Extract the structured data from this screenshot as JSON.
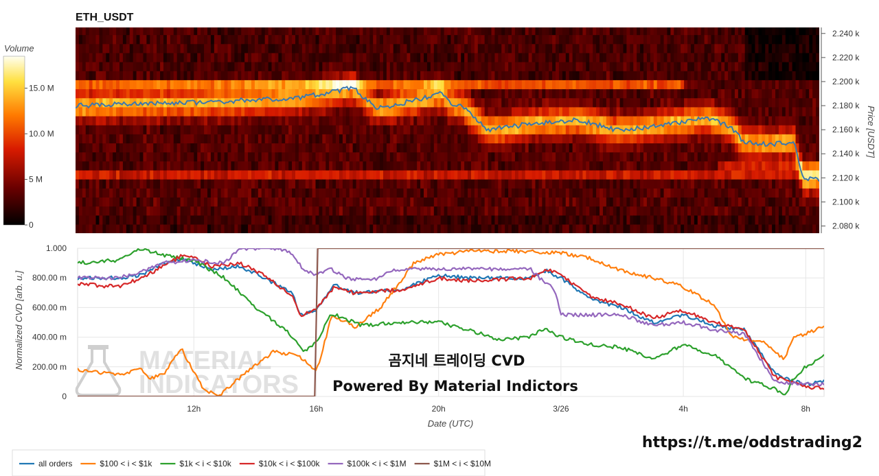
{
  "chart_data": [
    {
      "type": "heatmap",
      "title": "ETH_USDT",
      "ylabel": "Price [USDT]",
      "yticks": [
        "2.080 k",
        "2.100 k",
        "2.120 k",
        "2.140 k",
        "2.160 k",
        "2.180 k",
        "2.200 k",
        "2.220 k",
        "2.240 k"
      ],
      "ylim": [
        2074,
        2245
      ],
      "colorbar": {
        "title": "Volume",
        "ticks": [
          "0",
          "5 M",
          "10.0 M",
          "15.0 M"
        ],
        "range": [
          0,
          18.5
        ],
        "colors": [
          "#000000",
          "#6a0000",
          "#d81b00",
          "#ff7a00",
          "#ffe040",
          "#fffff0"
        ]
      },
      "price_series": {
        "name": "price",
        "color": "#3a78b0",
        "x": [
          0,
          6,
          10,
          12.1,
          13.2,
          15,
          16,
          16.3,
          17,
          18,
          20,
          22,
          23.6,
          25,
          26,
          27.6,
          28.6,
          29.2,
          30.4,
          31.4,
          31.8,
          32.2,
          32.5
        ],
        "y": [
          2180,
          2183,
          2187,
          2195,
          2178,
          2185,
          2190,
          2183,
          2178,
          2160,
          2165,
          2168,
          2160,
          2162,
          2165,
          2170,
          2163,
          2150,
          2148,
          2150,
          2118,
          2120,
          2118
        ]
      }
    },
    {
      "type": "line",
      "xlabel": "Date (UTC)",
      "ylabel": "Normalized CVD [arb. u.]",
      "xlim": [
        8.2,
        32.6
      ],
      "ylim": [
        0,
        1
      ],
      "xticks": [
        {
          "v": 12,
          "label": "12h"
        },
        {
          "v": 16,
          "label": "16h"
        },
        {
          "v": 20,
          "label": "20h"
        },
        {
          "v": 24,
          "label": "3/26"
        },
        {
          "v": 28,
          "label": "4h"
        },
        {
          "v": 32,
          "label": "8h"
        }
      ],
      "yticks": [
        {
          "v": 0,
          "label": "0"
        },
        {
          "v": 0.2,
          "label": "200.00 m"
        },
        {
          "v": 0.4,
          "label": "400.00 m"
        },
        {
          "v": 0.6,
          "label": "600.00 m"
        },
        {
          "v": 0.8,
          "label": "800.00 m"
        },
        {
          "v": 1.0,
          "label": "1.000"
        }
      ],
      "series": [
        {
          "name": "all orders",
          "color": "#1f77b4",
          "x": [
            8.2,
            9.5,
            10.3,
            11,
            11.7,
            12.6,
            13.5,
            14.3,
            15.2,
            15.5,
            16,
            16.1,
            16.6,
            17.2,
            18.8,
            20,
            21,
            22,
            23,
            23.5,
            24,
            25,
            26,
            27,
            28,
            29,
            30,
            31,
            32,
            32.6
          ],
          "y": [
            0.8,
            0.8,
            0.82,
            0.9,
            0.93,
            0.85,
            0.88,
            0.8,
            0.7,
            0.55,
            0.58,
            0.62,
            0.75,
            0.7,
            0.72,
            0.82,
            0.8,
            0.8,
            0.8,
            0.85,
            0.8,
            0.65,
            0.6,
            0.5,
            0.55,
            0.48,
            0.45,
            0.15,
            0.08,
            0.1
          ]
        },
        {
          "name": "$100 < i < $1k",
          "color": "#ff7f0e",
          "x": [
            8.2,
            9.5,
            10.3,
            10.5,
            11,
            11.6,
            12.3,
            12.8,
            13.8,
            14.6,
            15.4,
            16,
            16.2,
            16.5,
            17.3,
            18.1,
            19.2,
            20,
            21,
            22,
            23,
            24,
            25,
            26,
            27,
            28,
            29,
            29.6,
            30.1,
            30.7,
            31.3,
            31.6,
            32,
            32.6
          ],
          "y": [
            0.18,
            0.15,
            0.18,
            0.12,
            0.15,
            0.32,
            0.05,
            0.0,
            0.18,
            0.3,
            0.28,
            0.17,
            0.3,
            0.55,
            0.47,
            0.6,
            0.9,
            0.96,
            0.98,
            0.98,
            0.98,
            0.97,
            0.93,
            0.85,
            0.8,
            0.74,
            0.62,
            0.4,
            0.38,
            0.36,
            0.25,
            0.4,
            0.42,
            0.48
          ]
        },
        {
          "name": "$1k < i < $10k",
          "color": "#2ca02c",
          "x": [
            8.2,
            9.5,
            10.3,
            11,
            12,
            13,
            14,
            15,
            15.6,
            16,
            16.5,
            17.5,
            19,
            20,
            21,
            22,
            23,
            23.5,
            24,
            25,
            26,
            27,
            28,
            29,
            30,
            31,
            31.3,
            31.6,
            32,
            32.6
          ],
          "y": [
            0.9,
            0.92,
            1.0,
            0.95,
            0.92,
            0.8,
            0.6,
            0.45,
            0.3,
            0.36,
            0.56,
            0.48,
            0.5,
            0.5,
            0.45,
            0.38,
            0.4,
            0.46,
            0.4,
            0.35,
            0.33,
            0.25,
            0.35,
            0.28,
            0.12,
            0.05,
            0.0,
            0.12,
            0.2,
            0.28
          ]
        },
        {
          "name": "$10k < i < $100k",
          "color": "#d62728",
          "x": [
            8.2,
            9.5,
            10.3,
            11,
            11.7,
            12.6,
            13.5,
            14.3,
            15.2,
            15.5,
            16,
            16.1,
            16.6,
            17.2,
            18.8,
            20,
            21,
            22,
            23,
            23.5,
            24,
            25,
            26,
            27,
            28,
            29,
            30,
            31,
            32,
            32.6
          ],
          "y": [
            0.76,
            0.74,
            0.8,
            0.88,
            0.96,
            0.88,
            0.9,
            0.82,
            0.68,
            0.55,
            0.58,
            0.62,
            0.74,
            0.7,
            0.72,
            0.8,
            0.78,
            0.79,
            0.8,
            0.86,
            0.82,
            0.67,
            0.62,
            0.53,
            0.58,
            0.5,
            0.45,
            0.13,
            0.06,
            0.06
          ]
        },
        {
          "name": "$100k < i < $1M",
          "color": "#9467bd",
          "x": [
            8.2,
            9.5,
            10.3,
            11,
            12,
            13,
            13.5,
            14.8,
            15.2,
            15.6,
            16,
            16.5,
            17,
            17.8,
            18.5,
            19,
            20,
            21,
            22,
            23,
            23.4,
            23.8,
            24,
            25,
            26,
            27,
            28,
            29,
            30,
            31,
            32,
            32.6
          ],
          "y": [
            0.8,
            0.8,
            0.84,
            0.9,
            0.92,
            0.9,
            1.0,
            1.0,
            0.96,
            0.85,
            0.82,
            0.86,
            0.8,
            0.78,
            0.85,
            0.86,
            0.86,
            0.86,
            0.86,
            0.86,
            0.78,
            0.72,
            0.55,
            0.55,
            0.55,
            0.48,
            0.5,
            0.45,
            0.42,
            0.1,
            0.08,
            0.08
          ]
        },
        {
          "name": "$1M < i < $10M",
          "color": "#8c564b",
          "x": [
            8.2,
            15.95,
            16.05,
            32.6
          ],
          "y": [
            0.0,
            0.0,
            1.0,
            1.0
          ]
        }
      ]
    }
  ],
  "overlay_title": "곰지네 트레이딩 CVD",
  "overlay_subtitle": "Powered By Material Indictors",
  "telegram_link": "https://t.me/oddstrading2",
  "watermark": {
    "line1": "MATERIAL",
    "line2": "INDICATORS"
  }
}
